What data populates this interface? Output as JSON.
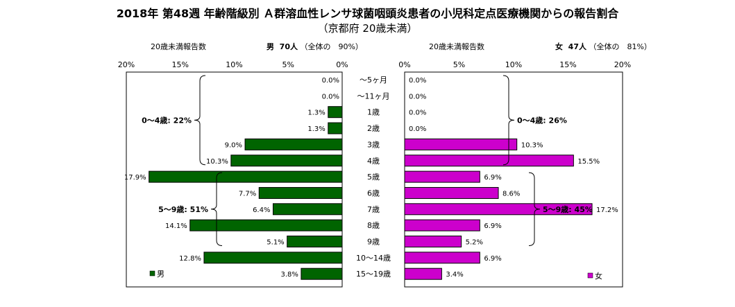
{
  "title": "2018年 第48週 年齢階級別 Ａ群溶血性レンサ球菌咽頭炎患者の小児科定点医療機関からの報告割合",
  "subtitle": "（京都府 20歳未満）",
  "left_header": {
    "label": "20歳未満報告数",
    "sex": "男",
    "count": "70人",
    "coverage": "（全体の　90%）"
  },
  "right_header": {
    "label": "20歳未満報告数",
    "sex": "女",
    "count": "47人",
    "coverage": "（全体の　81%）"
  },
  "chart_data": {
    "type": "bar",
    "orientation": "horizontal-butterfly",
    "categories": [
      "～5ヶ月",
      "～11ヶ月",
      "1歳",
      "2歳",
      "3歳",
      "4歳",
      "5歳",
      "6歳",
      "7歳",
      "8歳",
      "9歳",
      "10～14歳",
      "15～19歳"
    ],
    "series": [
      {
        "name": "男",
        "color": "#006400",
        "values": [
          0.0,
          0.0,
          1.3,
          1.3,
          9.0,
          10.3,
          17.9,
          7.7,
          6.4,
          14.1,
          5.1,
          12.8,
          3.8
        ],
        "labels": [
          "0.0%",
          "0.0%",
          "1.3%",
          "1.3%",
          "9.0%",
          "10.3%",
          "17.9%",
          "7.7%",
          "6.4%",
          "14.1%",
          "5.1%",
          "12.8%",
          "3.8%"
        ]
      },
      {
        "name": "女",
        "color": "#cc00cc",
        "values": [
          0.0,
          0.0,
          0.0,
          0.0,
          10.3,
          15.5,
          6.9,
          8.6,
          17.2,
          6.9,
          5.2,
          6.9,
          3.4
        ],
        "labels": [
          "0.0%",
          "0.0%",
          "0.0%",
          "0.0%",
          "10.3%",
          "15.5%",
          "6.9%",
          "8.6%",
          "17.2%",
          "6.9%",
          "5.2%",
          "6.9%",
          "3.4%"
        ]
      }
    ],
    "xlim": [
      0,
      20
    ],
    "ticks": [
      "0%",
      "5%",
      "10%",
      "15%",
      "20%"
    ],
    "tick_values": [
      0,
      5,
      10,
      15,
      20
    ],
    "legend_placement": "bottom-left / bottom-right",
    "grid": false,
    "annotations": [
      {
        "side": "left",
        "text": "0～4歳: 22%",
        "from": 0,
        "to": 5
      },
      {
        "side": "left",
        "text": "5～9歳: 51%",
        "from": 6,
        "to": 10
      },
      {
        "side": "right",
        "text": "0～4歳: 26%",
        "from": 0,
        "to": 5
      },
      {
        "side": "right",
        "text": "5～9歳: 45%",
        "from": 6,
        "to": 10
      }
    ]
  }
}
